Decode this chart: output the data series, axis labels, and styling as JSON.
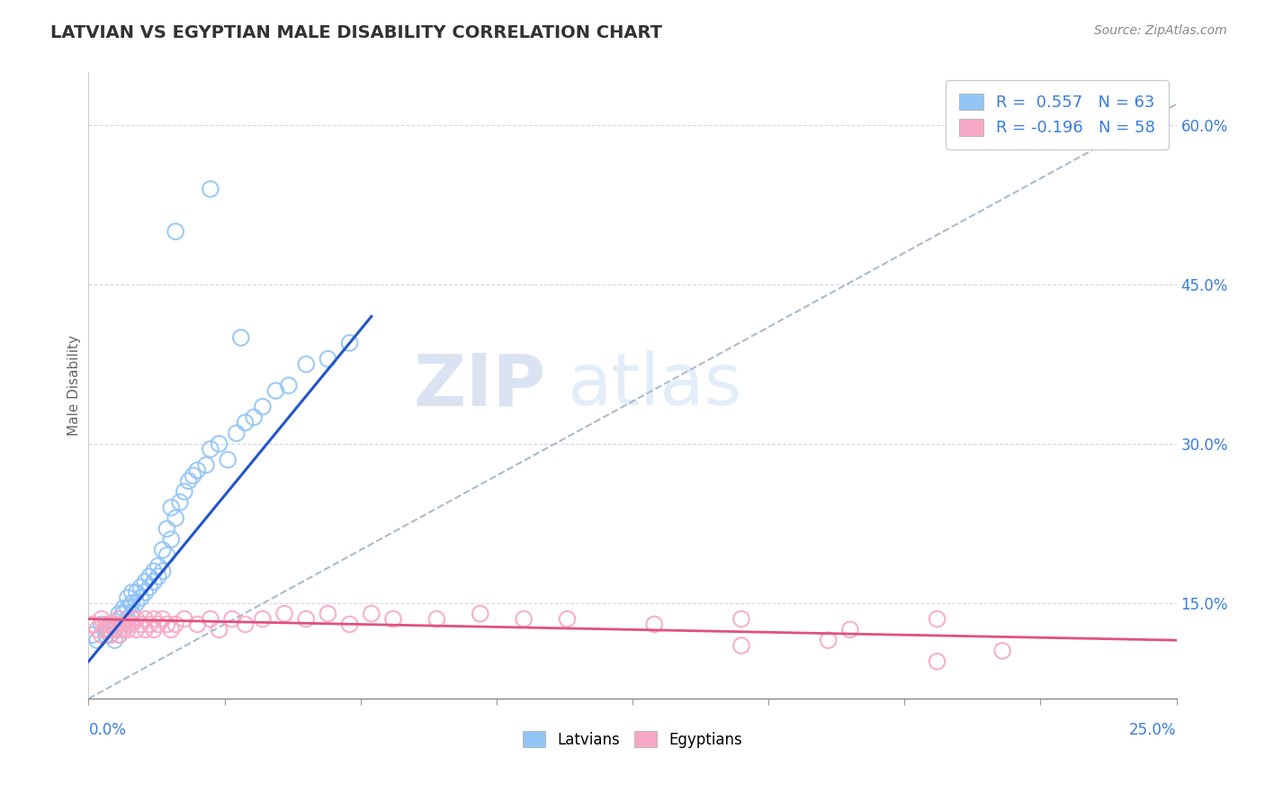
{
  "title": "LATVIAN VS EGYPTIAN MALE DISABILITY CORRELATION CHART",
  "source": "Source: ZipAtlas.com",
  "ylabel": "Male Disability",
  "x_min": 0.0,
  "x_max": 0.25,
  "y_min": 0.06,
  "y_max": 0.65,
  "right_yticks": [
    0.15,
    0.3,
    0.45,
    0.6
  ],
  "right_yticklabels": [
    "15.0%",
    "30.0%",
    "45.0%",
    "60.0%"
  ],
  "latvian_color": "#92c5f5",
  "egyptian_color": "#f7a8c4",
  "latvian_line_color": "#2255cc",
  "egyptian_line_color": "#e05080",
  "ref_line_color": "#aabbcc",
  "legend_latvian_label": "R =  0.557   N = 63",
  "legend_egyptian_label": "R = -0.196   N = 58",
  "bottom_legend_latvian": "Latvians",
  "bottom_legend_egyptian": "Egyptians",
  "watermark_zip": "ZIP",
  "watermark_atlas": "atlas",
  "latvian_x": [
    0.001,
    0.002,
    0.003,
    0.004,
    0.004,
    0.005,
    0.005,
    0.005,
    0.006,
    0.006,
    0.006,
    0.007,
    0.007,
    0.007,
    0.008,
    0.008,
    0.008,
    0.009,
    0.009,
    0.009,
    0.01,
    0.01,
    0.01,
    0.011,
    0.011,
    0.012,
    0.012,
    0.013,
    0.013,
    0.014,
    0.014,
    0.015,
    0.015,
    0.016,
    0.016,
    0.017,
    0.017,
    0.018,
    0.018,
    0.019,
    0.019,
    0.02,
    0.021,
    0.022,
    0.023,
    0.024,
    0.025,
    0.027,
    0.028,
    0.03,
    0.032,
    0.034,
    0.036,
    0.038,
    0.04,
    0.043,
    0.046,
    0.05,
    0.055,
    0.06,
    0.02,
    0.028,
    0.035
  ],
  "latvian_y": [
    0.12,
    0.115,
    0.13,
    0.12,
    0.125,
    0.12,
    0.125,
    0.13,
    0.115,
    0.125,
    0.13,
    0.12,
    0.135,
    0.14,
    0.125,
    0.14,
    0.145,
    0.135,
    0.145,
    0.155,
    0.14,
    0.15,
    0.16,
    0.15,
    0.16,
    0.155,
    0.165,
    0.16,
    0.17,
    0.165,
    0.175,
    0.17,
    0.18,
    0.175,
    0.185,
    0.18,
    0.2,
    0.195,
    0.22,
    0.21,
    0.24,
    0.23,
    0.245,
    0.255,
    0.265,
    0.27,
    0.275,
    0.28,
    0.295,
    0.3,
    0.285,
    0.31,
    0.32,
    0.325,
    0.335,
    0.35,
    0.355,
    0.375,
    0.38,
    0.395,
    0.5,
    0.54,
    0.4
  ],
  "latvian_trend_x": [
    0.0,
    0.065
  ],
  "latvian_trend_y": [
    0.095,
    0.42
  ],
  "egyptian_x": [
    0.001,
    0.002,
    0.003,
    0.003,
    0.004,
    0.004,
    0.005,
    0.005,
    0.005,
    0.006,
    0.006,
    0.007,
    0.007,
    0.007,
    0.008,
    0.008,
    0.009,
    0.009,
    0.01,
    0.01,
    0.011,
    0.011,
    0.012,
    0.013,
    0.013,
    0.014,
    0.015,
    0.015,
    0.016,
    0.017,
    0.018,
    0.019,
    0.02,
    0.022,
    0.025,
    0.028,
    0.03,
    0.033,
    0.036,
    0.04,
    0.045,
    0.05,
    0.055,
    0.06,
    0.065,
    0.07,
    0.08,
    0.09,
    0.1,
    0.11,
    0.13,
    0.15,
    0.175,
    0.195,
    0.21,
    0.17,
    0.15,
    0.195
  ],
  "egyptian_y": [
    0.13,
    0.125,
    0.12,
    0.135,
    0.125,
    0.13,
    0.12,
    0.125,
    0.13,
    0.125,
    0.13,
    0.125,
    0.135,
    0.12,
    0.13,
    0.125,
    0.13,
    0.125,
    0.135,
    0.13,
    0.125,
    0.135,
    0.13,
    0.135,
    0.125,
    0.13,
    0.135,
    0.125,
    0.13,
    0.135,
    0.13,
    0.125,
    0.13,
    0.135,
    0.13,
    0.135,
    0.125,
    0.135,
    0.13,
    0.135,
    0.14,
    0.135,
    0.14,
    0.13,
    0.14,
    0.135,
    0.135,
    0.14,
    0.135,
    0.135,
    0.13,
    0.135,
    0.125,
    0.135,
    0.105,
    0.115,
    0.11,
    0.095
  ],
  "egyptian_trend_x": [
    0.0,
    0.25
  ],
  "egyptian_trend_y": [
    0.135,
    0.115
  ]
}
